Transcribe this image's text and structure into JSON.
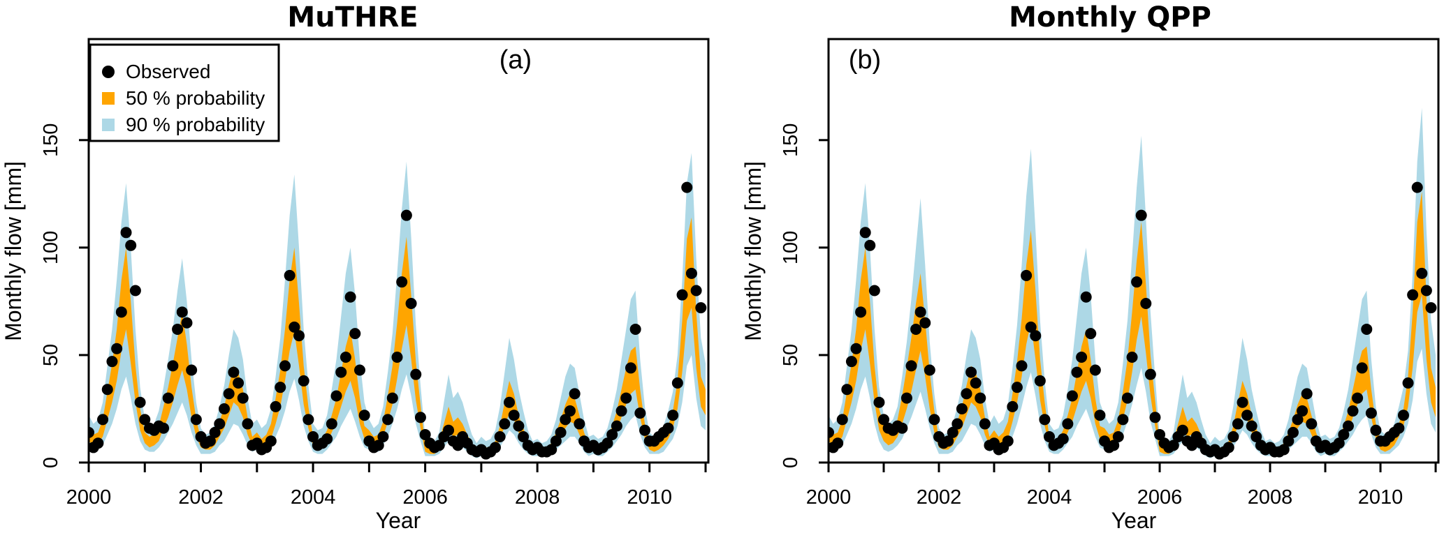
{
  "figure": {
    "background": "#FFFFFF",
    "colors": {
      "observed": "#000000",
      "band50": "#FFA500",
      "band90": "#ADD8E6",
      "axis": "#000000"
    },
    "legend": {
      "items": [
        {
          "label": "Observed",
          "marker": "circle",
          "color": "#000000"
        },
        {
          "label": "50 % probability",
          "marker": "square",
          "color": "#FFA500"
        },
        {
          "label": "90 % probability",
          "marker": "square",
          "color": "#ADD8E6"
        }
      ]
    },
    "x_axis": {
      "label": "Year",
      "range": [
        2000,
        2011.05
      ],
      "tick_years": [
        2000,
        2001,
        2002,
        2003,
        2004,
        2005,
        2006,
        2007,
        2008,
        2009,
        2010,
        2011
      ],
      "labeled_years": [
        2000,
        2002,
        2004,
        2006,
        2008,
        2010
      ]
    },
    "y_axis": {
      "label": "Monthly flow [mm]",
      "unit": "mm",
      "ticks": [
        0,
        50,
        100,
        150
      ],
      "plot_max": 197
    }
  },
  "chart_data": [
    {
      "type": "area+scatter",
      "panel_label": "(a)",
      "title": "MuTHRE",
      "start_year": 2000,
      "months_per_year": 12,
      "n_months": 132,
      "observed": [
        14,
        7,
        9,
        20,
        34,
        47,
        53,
        70,
        107,
        101,
        80,
        28,
        20,
        16,
        15,
        17,
        16,
        30,
        45,
        62,
        70,
        65,
        43,
        20,
        12,
        9,
        10,
        14,
        18,
        25,
        32,
        42,
        37,
        30,
        18,
        8,
        9,
        6,
        7,
        10,
        26,
        35,
        45,
        87,
        63,
        59,
        38,
        20,
        12,
        8,
        9,
        11,
        18,
        31,
        42,
        49,
        77,
        60,
        43,
        22,
        10,
        7,
        8,
        12,
        20,
        30,
        49,
        84,
        115,
        74,
        41,
        21,
        13,
        9,
        7,
        8,
        12,
        15,
        10,
        8,
        12,
        9,
        6,
        5,
        6,
        4,
        5,
        7,
        12,
        18,
        28,
        22,
        17,
        12,
        8,
        6,
        7,
        5,
        5,
        6,
        10,
        14,
        20,
        24,
        32,
        18,
        10,
        7,
        8,
        6,
        7,
        9,
        13,
        17,
        24,
        30,
        44,
        62,
        23,
        15,
        10,
        10,
        12,
        14,
        16,
        22,
        37,
        78,
        128,
        88,
        80,
        72
      ],
      "q5": [
        6,
        5,
        6,
        8,
        13,
        18,
        25,
        34,
        40,
        30,
        18,
        10,
        6,
        5,
        5,
        7,
        10,
        14,
        18,
        23,
        28,
        22,
        14,
        8,
        4,
        4,
        4,
        5,
        8,
        10,
        14,
        18,
        17,
        13,
        8,
        5,
        6,
        4,
        5,
        7,
        12,
        17,
        24,
        33,
        39,
        29,
        17,
        10,
        5,
        4,
        4,
        6,
        9,
        12,
        17,
        21,
        25,
        19,
        12,
        7,
        6,
        5,
        5,
        8,
        12,
        18,
        25,
        34,
        41,
        31,
        18,
        10,
        3,
        3,
        3,
        4,
        7,
        10,
        8,
        8,
        7,
        5,
        3,
        2,
        3,
        3,
        3,
        4,
        7,
        11,
        15,
        13,
        9,
        6,
        4,
        3,
        3,
        3,
        3,
        4,
        6,
        8,
        10,
        12,
        12,
        9,
        5,
        3,
        4,
        3,
        3,
        5,
        7,
        10,
        13,
        17,
        20,
        22,
        13,
        7,
        4,
        4,
        4,
        5,
        8,
        11,
        17,
        28,
        45,
        50,
        30,
        17
      ],
      "q25": [
        10,
        8,
        9,
        12,
        20,
        28,
        38,
        52,
        62,
        46,
        28,
        15,
        9,
        7,
        8,
        10,
        16,
        21,
        28,
        36,
        43,
        34,
        21,
        12,
        7,
        6,
        6,
        8,
        12,
        16,
        22,
        28,
        26,
        21,
        13,
        8,
        9,
        7,
        8,
        11,
        18,
        26,
        38,
        52,
        61,
        45,
        27,
        16,
        8,
        6,
        7,
        9,
        14,
        19,
        26,
        33,
        38,
        30,
        18,
        11,
        9,
        7,
        8,
        12,
        19,
        27,
        39,
        53,
        64,
        48,
        29,
        16,
        5,
        4,
        4,
        6,
        11,
        16,
        12,
        13,
        11,
        8,
        5,
        4,
        5,
        4,
        5,
        6,
        11,
        17,
        23,
        20,
        14,
        10,
        6,
        4,
        5,
        4,
        4,
        6,
        9,
        12,
        16,
        19,
        18,
        13,
        8,
        5,
        6,
        5,
        5,
        7,
        11,
        15,
        21,
        27,
        32,
        34,
        21,
        11,
        6,
        5,
        6,
        8,
        11,
        16,
        25,
        42,
        66,
        72,
        44,
        26
      ],
      "q75": [
        16,
        13,
        14,
        20,
        33,
        46,
        62,
        85,
        100,
        75,
        45,
        25,
        14,
        12,
        13,
        17,
        26,
        35,
        46,
        58,
        70,
        55,
        35,
        20,
        11,
        9,
        10,
        13,
        19,
        26,
        36,
        45,
        42,
        34,
        21,
        12,
        14,
        11,
        13,
        18,
        30,
        43,
        62,
        85,
        100,
        74,
        45,
        26,
        12,
        10,
        11,
        15,
        22,
        30,
        42,
        54,
        62,
        48,
        30,
        17,
        15,
        12,
        13,
        19,
        31,
        45,
        65,
        88,
        105,
        78,
        47,
        27,
        8,
        7,
        7,
        10,
        18,
        26,
        19,
        21,
        18,
        13,
        9,
        6,
        8,
        7,
        7,
        10,
        17,
        28,
        38,
        32,
        22,
        16,
        10,
        7,
        8,
        6,
        7,
        9,
        14,
        20,
        27,
        32,
        30,
        22,
        14,
        8,
        9,
        8,
        8,
        11,
        17,
        24,
        34,
        44,
        52,
        54,
        34,
        18,
        10,
        8,
        9,
        12,
        17,
        24,
        38,
        66,
        104,
        114,
        70,
        40
      ],
      "q95": [
        22,
        18,
        20,
        28,
        45,
        62,
        85,
        112,
        130,
        100,
        62,
        35,
        20,
        17,
        18,
        24,
        35,
        48,
        62,
        80,
        95,
        75,
        48,
        28,
        16,
        13,
        14,
        18,
        26,
        36,
        50,
        62,
        58,
        48,
        30,
        18,
        20,
        16,
        18,
        25,
        40,
        58,
        85,
        115,
        134,
        100,
        62,
        36,
        18,
        15,
        16,
        22,
        34,
        48,
        68,
        88,
        100,
        78,
        48,
        28,
        20,
        16,
        18,
        26,
        42,
        60,
        88,
        118,
        140,
        105,
        64,
        36,
        12,
        10,
        10,
        14,
        28,
        41,
        30,
        33,
        28,
        20,
        13,
        9,
        12,
        10,
        11,
        15,
        26,
        42,
        58,
        48,
        34,
        24,
        15,
        10,
        11,
        9,
        10,
        13,
        20,
        30,
        40,
        46,
        44,
        32,
        20,
        12,
        13,
        11,
        12,
        16,
        24,
        34,
        48,
        62,
        76,
        80,
        48,
        26,
        14,
        12,
        13,
        17,
        24,
        33,
        50,
        85,
        130,
        144,
        95,
        58
      ],
      "edge_2011": {
        "q5": 15,
        "q25": 22,
        "q75": 34,
        "q95": 46
      }
    },
    {
      "type": "area+scatter",
      "panel_label": "(b)",
      "title": "Monthly QPP",
      "start_year": 2000,
      "months_per_year": 12,
      "n_months": 132,
      "observed": [
        14,
        7,
        9,
        20,
        34,
        47,
        53,
        70,
        107,
        101,
        80,
        28,
        20,
        16,
        15,
        17,
        16,
        30,
        45,
        62,
        70,
        65,
        43,
        20,
        12,
        9,
        10,
        14,
        18,
        25,
        32,
        42,
        37,
        30,
        18,
        8,
        9,
        6,
        7,
        10,
        26,
        35,
        45,
        87,
        63,
        59,
        38,
        20,
        12,
        8,
        9,
        11,
        18,
        31,
        42,
        49,
        77,
        60,
        43,
        22,
        10,
        7,
        8,
        12,
        20,
        30,
        49,
        84,
        115,
        74,
        41,
        21,
        13,
        9,
        7,
        8,
        12,
        15,
        10,
        8,
        12,
        9,
        6,
        5,
        6,
        4,
        5,
        7,
        12,
        18,
        28,
        22,
        17,
        12,
        8,
        6,
        7,
        5,
        5,
        6,
        10,
        14,
        20,
        24,
        32,
        18,
        10,
        7,
        8,
        6,
        7,
        9,
        13,
        17,
        24,
        30,
        44,
        62,
        23,
        15,
        10,
        10,
        12,
        14,
        16,
        22,
        37,
        78,
        128,
        88,
        80,
        72
      ],
      "q5": [
        6,
        5,
        6,
        8,
        13,
        18,
        25,
        34,
        40,
        30,
        18,
        10,
        6,
        5,
        6,
        8,
        11,
        16,
        21,
        27,
        33,
        25,
        16,
        9,
        4,
        4,
        4,
        5,
        8,
        10,
        14,
        18,
        17,
        13,
        8,
        5,
        6,
        4,
        5,
        7,
        12,
        18,
        26,
        35,
        42,
        31,
        18,
        10,
        5,
        4,
        4,
        6,
        9,
        12,
        17,
        21,
        25,
        19,
        12,
        7,
        6,
        5,
        6,
        8,
        13,
        19,
        27,
        36,
        44,
        33,
        19,
        11,
        3,
        3,
        3,
        4,
        7,
        10,
        8,
        8,
        7,
        5,
        3,
        2,
        3,
        3,
        3,
        4,
        7,
        11,
        15,
        13,
        9,
        6,
        4,
        3,
        3,
        3,
        3,
        4,
        6,
        8,
        10,
        12,
        12,
        9,
        5,
        3,
        4,
        3,
        3,
        5,
        7,
        10,
        13,
        17,
        20,
        22,
        13,
        7,
        4,
        4,
        4,
        6,
        8,
        12,
        18,
        29,
        47,
        53,
        32,
        18
      ],
      "q25": [
        10,
        8,
        9,
        12,
        20,
        28,
        38,
        52,
        62,
        46,
        28,
        15,
        10,
        8,
        9,
        12,
        18,
        25,
        33,
        43,
        52,
        40,
        25,
        14,
        7,
        6,
        6,
        8,
        12,
        16,
        22,
        28,
        26,
        21,
        13,
        8,
        9,
        7,
        8,
        11,
        19,
        28,
        40,
        55,
        65,
        48,
        29,
        17,
        8,
        6,
        7,
        9,
        14,
        19,
        26,
        33,
        38,
        30,
        18,
        11,
        10,
        8,
        9,
        12,
        20,
        29,
        42,
        57,
        68,
        51,
        31,
        17,
        5,
        4,
        4,
        6,
        11,
        16,
        12,
        13,
        11,
        8,
        5,
        4,
        5,
        4,
        5,
        6,
        11,
        17,
        23,
        20,
        14,
        10,
        6,
        4,
        5,
        4,
        4,
        6,
        9,
        12,
        16,
        19,
        18,
        13,
        8,
        5,
        6,
        5,
        5,
        7,
        11,
        15,
        21,
        27,
        32,
        34,
        21,
        11,
        6,
        5,
        6,
        8,
        12,
        17,
        26,
        44,
        70,
        78,
        48,
        28
      ],
      "q75": [
        16,
        13,
        14,
        20,
        33,
        46,
        62,
        85,
        100,
        75,
        45,
        25,
        17,
        14,
        15,
        20,
        31,
        44,
        58,
        74,
        88,
        66,
        42,
        24,
        11,
        9,
        10,
        13,
        19,
        26,
        36,
        45,
        42,
        34,
        21,
        12,
        15,
        12,
        14,
        19,
        32,
        47,
        67,
        92,
        108,
        80,
        48,
        28,
        12,
        10,
        11,
        15,
        22,
        30,
        42,
        54,
        62,
        48,
        30,
        17,
        16,
        13,
        14,
        20,
        33,
        48,
        70,
        94,
        112,
        83,
        50,
        29,
        8,
        7,
        7,
        10,
        18,
        26,
        19,
        21,
        18,
        13,
        9,
        6,
        8,
        7,
        7,
        10,
        17,
        28,
        38,
        32,
        22,
        16,
        10,
        7,
        8,
        6,
        7,
        9,
        14,
        20,
        27,
        32,
        30,
        22,
        14,
        8,
        9,
        8,
        8,
        11,
        17,
        24,
        34,
        44,
        52,
        54,
        34,
        18,
        10,
        9,
        10,
        13,
        18,
        25,
        40,
        70,
        112,
        126,
        76,
        44
      ],
      "q95": [
        22,
        18,
        20,
        28,
        45,
        62,
        85,
        112,
        130,
        100,
        62,
        35,
        22,
        18,
        20,
        26,
        40,
        56,
        76,
        100,
        123,
        92,
        56,
        32,
        16,
        13,
        14,
        18,
        26,
        36,
        50,
        62,
        58,
        48,
        30,
        18,
        22,
        18,
        20,
        27,
        44,
        64,
        92,
        124,
        146,
        108,
        66,
        38,
        18,
        15,
        16,
        22,
        34,
        48,
        68,
        88,
        100,
        78,
        48,
        28,
        22,
        18,
        20,
        28,
        46,
        66,
        96,
        128,
        152,
        114,
        70,
        40,
        12,
        10,
        10,
        14,
        28,
        41,
        30,
        33,
        28,
        20,
        13,
        9,
        12,
        10,
        11,
        15,
        26,
        42,
        58,
        48,
        34,
        24,
        15,
        10,
        11,
        9,
        10,
        13,
        20,
        30,
        40,
        46,
        44,
        32,
        20,
        12,
        13,
        11,
        12,
        16,
        24,
        34,
        48,
        62,
        76,
        80,
        48,
        26,
        15,
        13,
        14,
        18,
        26,
        35,
        52,
        88,
        140,
        165,
        108,
        66
      ],
      "edge_2011": {
        "q5": 14,
        "q25": 21,
        "q75": 35,
        "q95": 50
      }
    }
  ]
}
